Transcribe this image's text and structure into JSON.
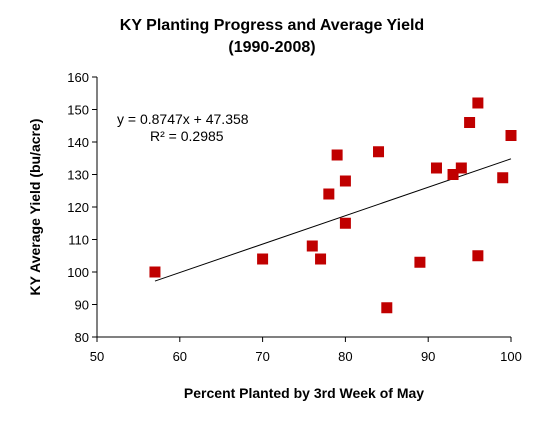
{
  "chart_data": {
    "type": "scatter",
    "title": "KY Planting Progress and Average Yield",
    "subtitle": "(1990-2008)",
    "xlabel": "Percent Planted by 3rd Week of May",
    "ylabel": "KY Average Yield (bu/acre)",
    "xlim": [
      50,
      100
    ],
    "ylim": [
      80,
      160
    ],
    "xticks": [
      50,
      60,
      70,
      80,
      90,
      100
    ],
    "yticks": [
      80,
      90,
      100,
      110,
      120,
      130,
      140,
      150,
      160
    ],
    "grid": false,
    "marker_color": "#c00000",
    "points": [
      {
        "x": 57,
        "y": 100
      },
      {
        "x": 70,
        "y": 104
      },
      {
        "x": 76,
        "y": 108
      },
      {
        "x": 77,
        "y": 104
      },
      {
        "x": 78,
        "y": 124
      },
      {
        "x": 79,
        "y": 136
      },
      {
        "x": 80,
        "y": 128
      },
      {
        "x": 80,
        "y": 115
      },
      {
        "x": 84,
        "y": 137
      },
      {
        "x": 85,
        "y": 89
      },
      {
        "x": 89,
        "y": 103
      },
      {
        "x": 91,
        "y": 132
      },
      {
        "x": 93,
        "y": 130
      },
      {
        "x": 94,
        "y": 132
      },
      {
        "x": 95,
        "y": 146
      },
      {
        "x": 96,
        "y": 152
      },
      {
        "x": 96,
        "y": 105
      },
      {
        "x": 99,
        "y": 129
      },
      {
        "x": 100,
        "y": 142
      }
    ],
    "trendline": {
      "slope": 0.8747,
      "intercept": 47.358,
      "x_range": [
        57,
        100
      ],
      "equation_label": "y = 0.8747x + 47.358",
      "r2_label": "R² = 0.2985"
    }
  }
}
